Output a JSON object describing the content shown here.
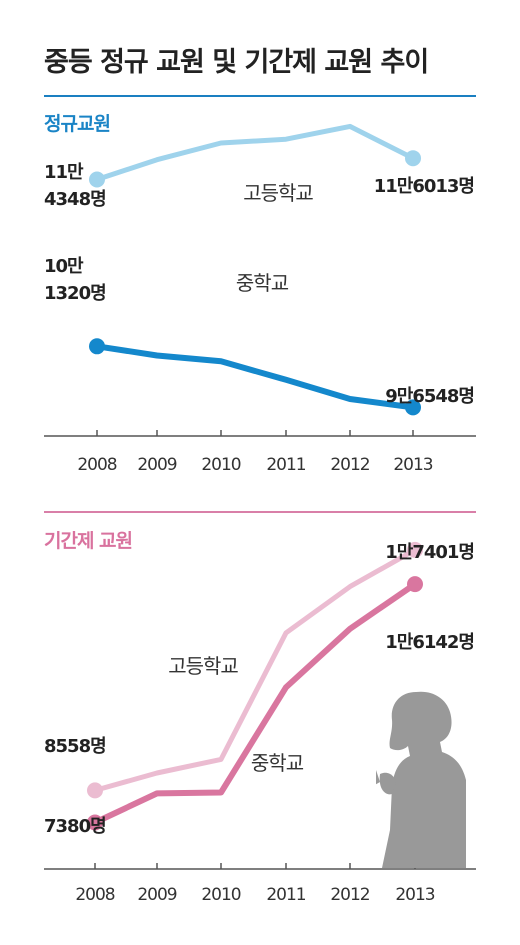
{
  "title": "중등 정규 교원 및 기간제 교원 추이",
  "chart_data": [
    {
      "type": "line",
      "title": "정규교원",
      "categories": [
        "2008",
        "2009",
        "2010",
        "2011",
        "2012",
        "2013"
      ],
      "ylim": [
        94000,
        119000
      ],
      "grid": false,
      "legend": "none",
      "series": [
        {
          "name": "고등학교",
          "color": "#9fd3ec",
          "values": [
            114348,
            115900,
            117200,
            117500,
            118500,
            116013
          ],
          "labels": [
            {
              "index": 0,
              "lines": [
                "11만",
                "4348명"
              ]
            },
            {
              "index": 5,
              "lines": [
                "11만6013명"
              ]
            }
          ]
        },
        {
          "name": "중학교",
          "color": "#1488cc",
          "values": [
            101320,
            100600,
            100150,
            98700,
            97200,
            96548
          ],
          "labels": [
            {
              "index": 0,
              "lines": [
                "10만",
                "1320명"
              ]
            },
            {
              "index": 5,
              "lines": [
                "9만6548명"
              ]
            }
          ]
        }
      ]
    },
    {
      "type": "line",
      "title": "기간제 교원",
      "categories": [
        "2008",
        "2009",
        "2010",
        "2011",
        "2012",
        "2013"
      ],
      "ylim": [
        6000,
        18500
      ],
      "grid": false,
      "legend": "none",
      "series": [
        {
          "name": "고등학교",
          "color": "#ebbcd1",
          "values": [
            8558,
            9200,
            9700,
            14350,
            16050,
            17401
          ],
          "labels": [
            {
              "index": 0,
              "lines": [
                "8558명"
              ]
            },
            {
              "index": 5,
              "lines": [
                "1만7401명"
              ]
            }
          ]
        },
        {
          "name": "중학교",
          "color": "#d9769f",
          "values": [
            7380,
            8450,
            8480,
            12350,
            14500,
            16142
          ],
          "labels": [
            {
              "index": 0,
              "lines": [
                "7380명"
              ]
            },
            {
              "index": 5,
              "lines": [
                "1만6142명"
              ]
            }
          ]
        }
      ]
    }
  ]
}
